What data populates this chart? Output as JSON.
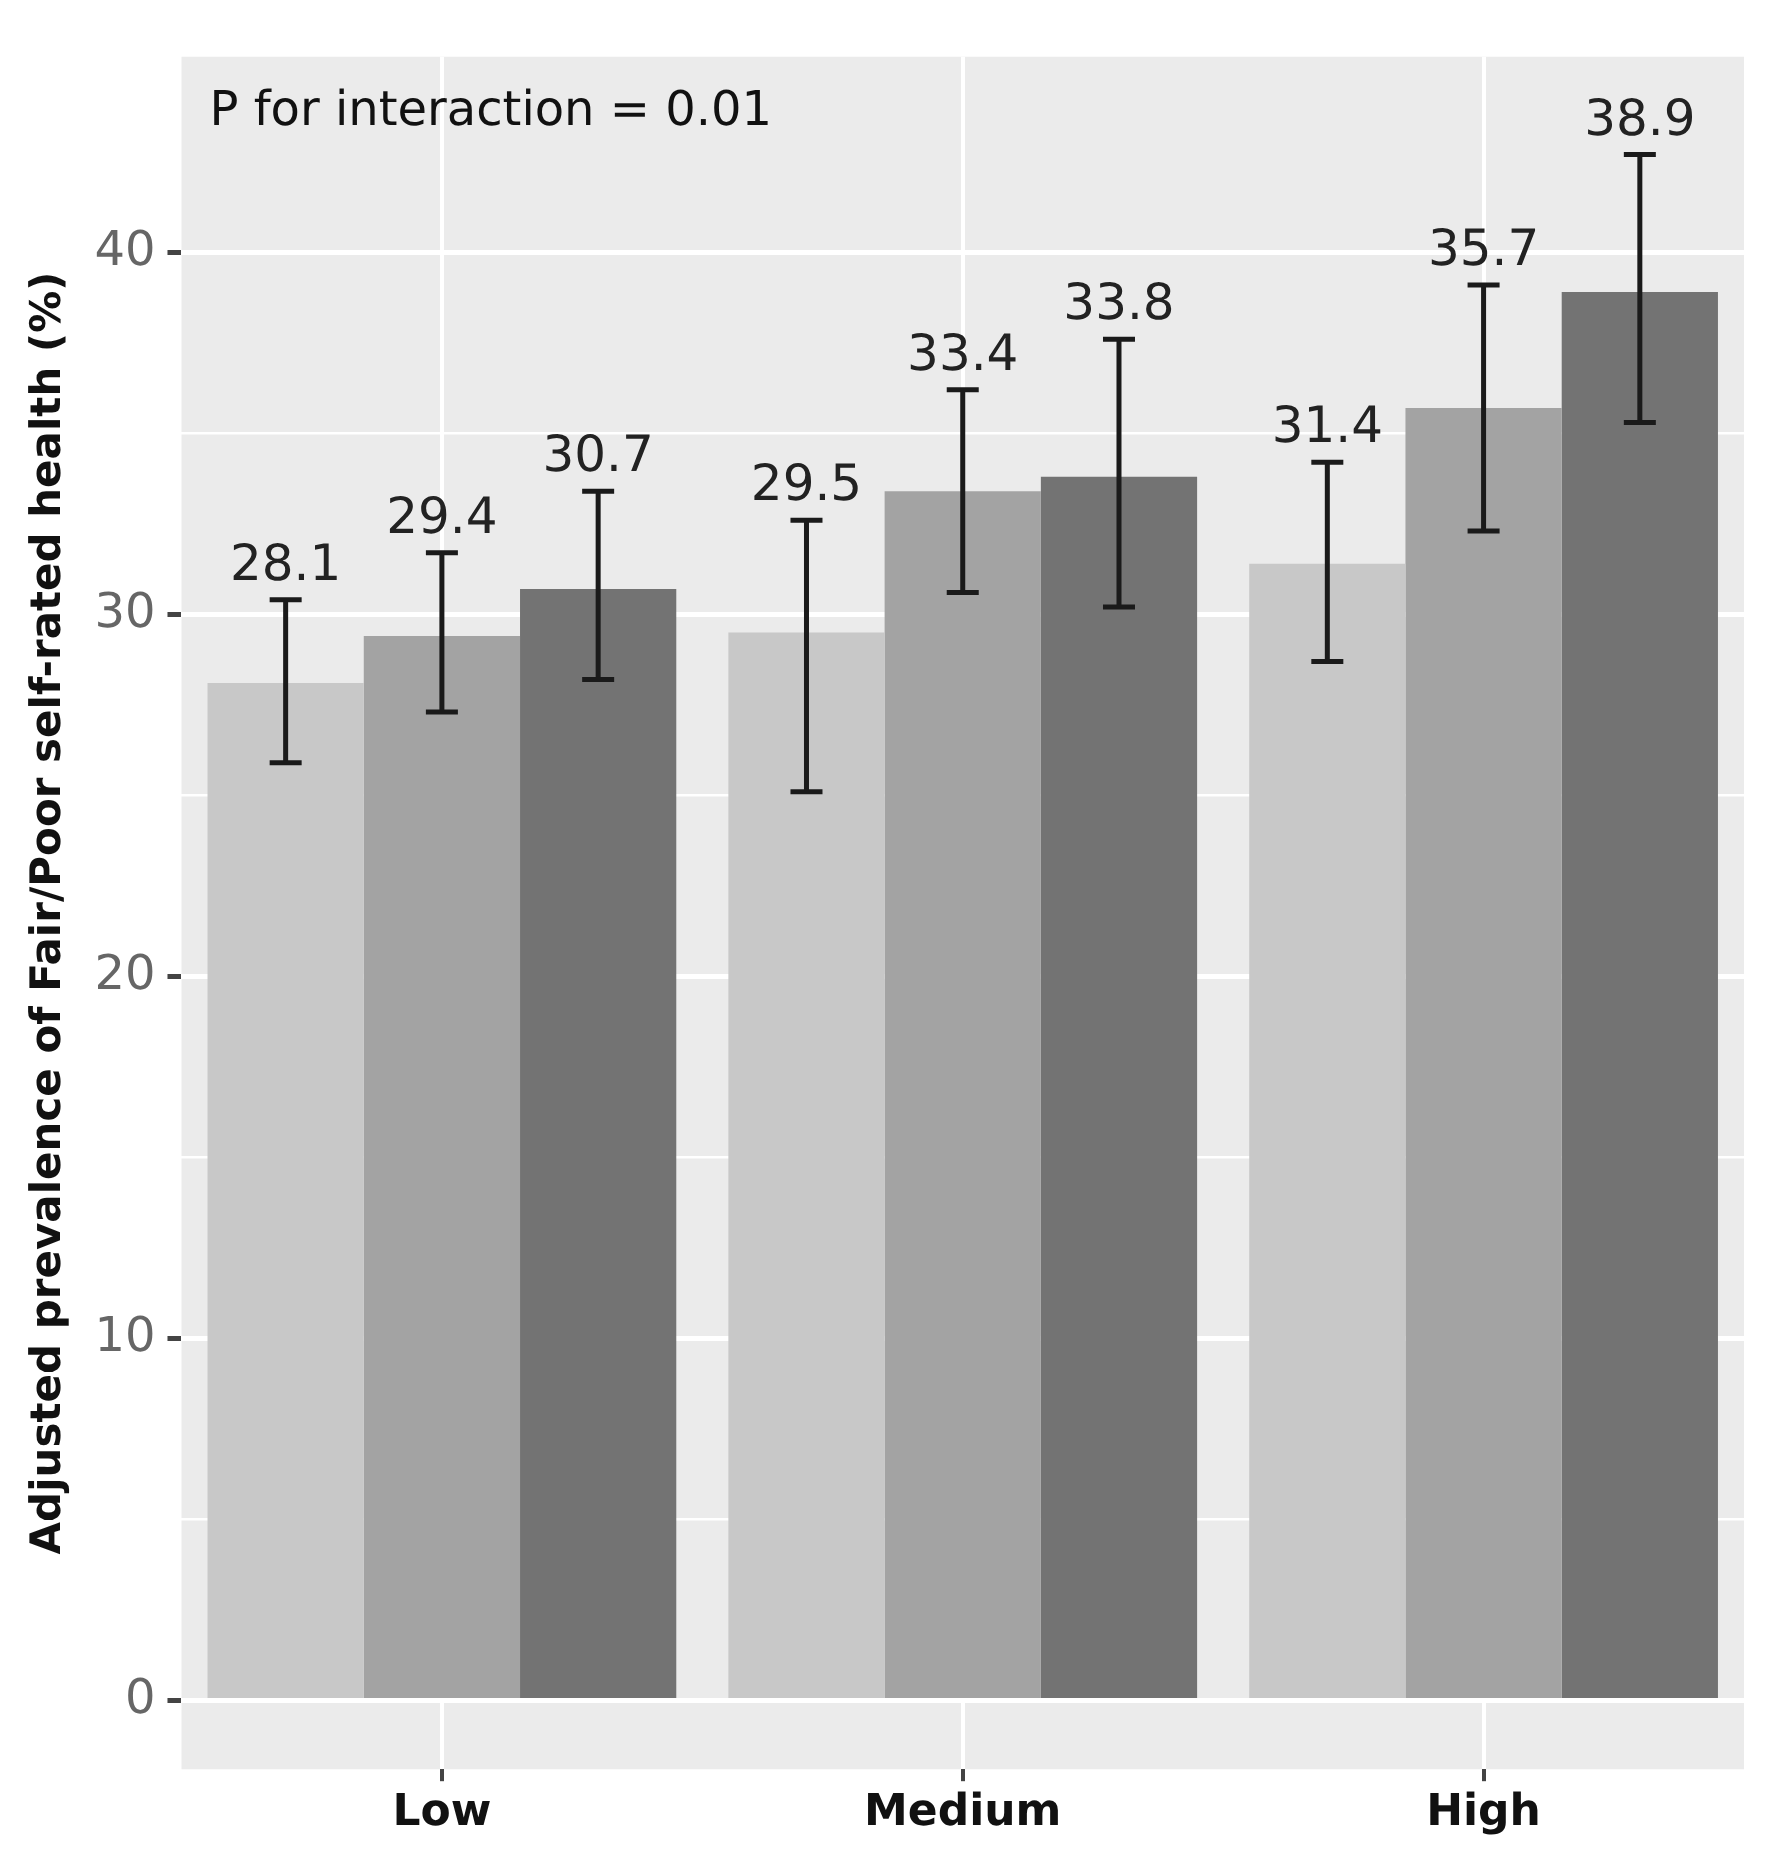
{
  "chart_data": {
    "type": "bar",
    "ylabel": "Adjusted prevalence of Fair/Poor self-rated health (%)",
    "annotations": [
      "P for interaction = 0.01"
    ],
    "categories": [
      "Low",
      "Medium",
      "High"
    ],
    "series": [
      {
        "color": "#c8c8c8",
        "values": [
          28.1,
          29.5,
          31.4
        ],
        "errors": [
          [
            25.9,
            30.4
          ],
          [
            25.1,
            32.6
          ],
          [
            28.7,
            34.2
          ]
        ]
      },
      {
        "color": "#a3a3a3",
        "values": [
          29.4,
          33.4,
          35.7
        ],
        "errors": [
          [
            27.3,
            31.7
          ],
          [
            30.6,
            36.2
          ],
          [
            32.3,
            39.1
          ]
        ]
      },
      {
        "color": "#737373",
        "values": [
          30.7,
          33.8,
          38.9
        ],
        "errors": [
          [
            28.2,
            33.4
          ],
          [
            30.2,
            37.6
          ],
          [
            35.3,
            42.7
          ]
        ]
      }
    ],
    "ylim": [
      -1.9,
      45.4
    ],
    "yticks": [
      0,
      {
        "value": 5,
        "label": null
      },
      10,
      {
        "value": 15,
        "label": null
      },
      20,
      {
        "value": 25,
        "label": null
      },
      30,
      {
        "value": 35,
        "label": null
      },
      40
    ],
    "grid": true,
    "data_labels": true,
    "legend": false
  }
}
